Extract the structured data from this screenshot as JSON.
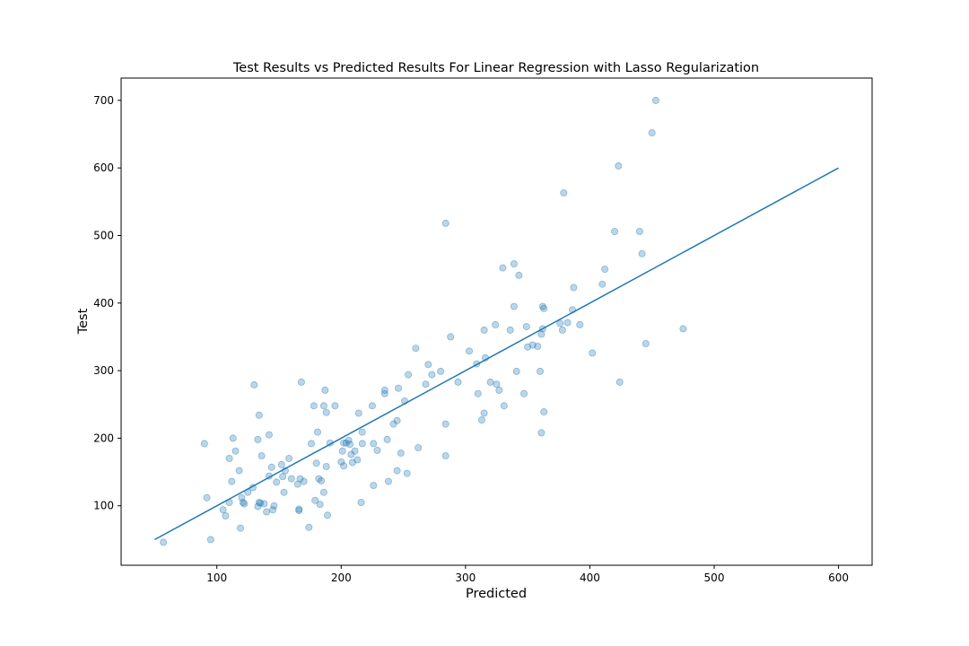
{
  "chart_data": {
    "type": "scatter",
    "title": "Test Results vs Predicted Results For Linear Regression with Lasso Regularization",
    "xlabel": "Predicted",
    "ylabel": "Test",
    "xlim": [
      23,
      627
    ],
    "ylim": [
      12,
      733
    ],
    "xticks": [
      100,
      200,
      300,
      400,
      500,
      600
    ],
    "yticks": [
      100,
      200,
      300,
      400,
      500,
      600,
      700
    ],
    "grid": false,
    "colors": {
      "points": "#1f77b4",
      "line": "#1f77b4"
    },
    "line": {
      "x": [
        50,
        600
      ],
      "y": [
        50,
        600
      ]
    },
    "points": [
      [
        57,
        46
      ],
      [
        95,
        50
      ],
      [
        90,
        192
      ],
      [
        92,
        112
      ],
      [
        105,
        94
      ],
      [
        107,
        85
      ],
      [
        110,
        105
      ],
      [
        112,
        136
      ],
      [
        110,
        170
      ],
      [
        113,
        200
      ],
      [
        115,
        181
      ],
      [
        118,
        152
      ],
      [
        119,
        67
      ],
      [
        120,
        112
      ],
      [
        121,
        105
      ],
      [
        122,
        103
      ],
      [
        125,
        120
      ],
      [
        129,
        127
      ],
      [
        130,
        279
      ],
      [
        133,
        198
      ],
      [
        133,
        99
      ],
      [
        134,
        105
      ],
      [
        134,
        234
      ],
      [
        135,
        104
      ],
      [
        136,
        174
      ],
      [
        138,
        103
      ],
      [
        140,
        91
      ],
      [
        142,
        205
      ],
      [
        142,
        144
      ],
      [
        144,
        157
      ],
      [
        145,
        94
      ],
      [
        146,
        100
      ],
      [
        148,
        135
      ],
      [
        152,
        161
      ],
      [
        153,
        143
      ],
      [
        154,
        120
      ],
      [
        155,
        152
      ],
      [
        158,
        170
      ],
      [
        160,
        140
      ],
      [
        165,
        132
      ],
      [
        166,
        95
      ],
      [
        166,
        93
      ],
      [
        167,
        140
      ],
      [
        168,
        283
      ],
      [
        170,
        136
      ],
      [
        174,
        68
      ],
      [
        176,
        192
      ],
      [
        178,
        248
      ],
      [
        179,
        108
      ],
      [
        180,
        163
      ],
      [
        181,
        209
      ],
      [
        182,
        140
      ],
      [
        183,
        102
      ],
      [
        184,
        137
      ],
      [
        186,
        120
      ],
      [
        186,
        248
      ],
      [
        187,
        271
      ],
      [
        188,
        238
      ],
      [
        188,
        158
      ],
      [
        189,
        86
      ],
      [
        191,
        193
      ],
      [
        195,
        248
      ],
      [
        200,
        165
      ],
      [
        201,
        181
      ],
      [
        202,
        193
      ],
      [
        202,
        159
      ],
      [
        204,
        193
      ],
      [
        206,
        197
      ],
      [
        207,
        191
      ],
      [
        208,
        176
      ],
      [
        209,
        164
      ],
      [
        211,
        181
      ],
      [
        213,
        168
      ],
      [
        214,
        237
      ],
      [
        216,
        105
      ],
      [
        217,
        192
      ],
      [
        217,
        209
      ],
      [
        225,
        248
      ],
      [
        226,
        192
      ],
      [
        226,
        130
      ],
      [
        229,
        182
      ],
      [
        235,
        266
      ],
      [
        235,
        271
      ],
      [
        237,
        198
      ],
      [
        238,
        136
      ],
      [
        242,
        221
      ],
      [
        245,
        226
      ],
      [
        245,
        152
      ],
      [
        246,
        274
      ],
      [
        248,
        178
      ],
      [
        251,
        255
      ],
      [
        253,
        148
      ],
      [
        254,
        294
      ],
      [
        260,
        333
      ],
      [
        262,
        186
      ],
      [
        268,
        280
      ],
      [
        270,
        309
      ],
      [
        273,
        294
      ],
      [
        280,
        299
      ],
      [
        284,
        518
      ],
      [
        284,
        221
      ],
      [
        284,
        174
      ],
      [
        288,
        350
      ],
      [
        294,
        283
      ],
      [
        303,
        329
      ],
      [
        309,
        310
      ],
      [
        310,
        266
      ],
      [
        313,
        227
      ],
      [
        315,
        237
      ],
      [
        315,
        360
      ],
      [
        316,
        319
      ],
      [
        320,
        283
      ],
      [
        324,
        368
      ],
      [
        325,
        280
      ],
      [
        327,
        271
      ],
      [
        330,
        452
      ],
      [
        331,
        248
      ],
      [
        336,
        360
      ],
      [
        339,
        458
      ],
      [
        339,
        395
      ],
      [
        341,
        299
      ],
      [
        343,
        441
      ],
      [
        347,
        266
      ],
      [
        349,
        365
      ],
      [
        350,
        335
      ],
      [
        354,
        338
      ],
      [
        358,
        336
      ],
      [
        360,
        299
      ],
      [
        361,
        208
      ],
      [
        361,
        354
      ],
      [
        362,
        362
      ],
      [
        362,
        395
      ],
      [
        363,
        392
      ],
      [
        363,
        239
      ],
      [
        376,
        370
      ],
      [
        378,
        360
      ],
      [
        379,
        563
      ],
      [
        382,
        371
      ],
      [
        386,
        390
      ],
      [
        387,
        423
      ],
      [
        392,
        368
      ],
      [
        402,
        326
      ],
      [
        410,
        428
      ],
      [
        412,
        450
      ],
      [
        420,
        506
      ],
      [
        423,
        603
      ],
      [
        424,
        283
      ],
      [
        440,
        506
      ],
      [
        442,
        473
      ],
      [
        445,
        340
      ],
      [
        450,
        652
      ],
      [
        453,
        700
      ],
      [
        475,
        362
      ]
    ]
  }
}
